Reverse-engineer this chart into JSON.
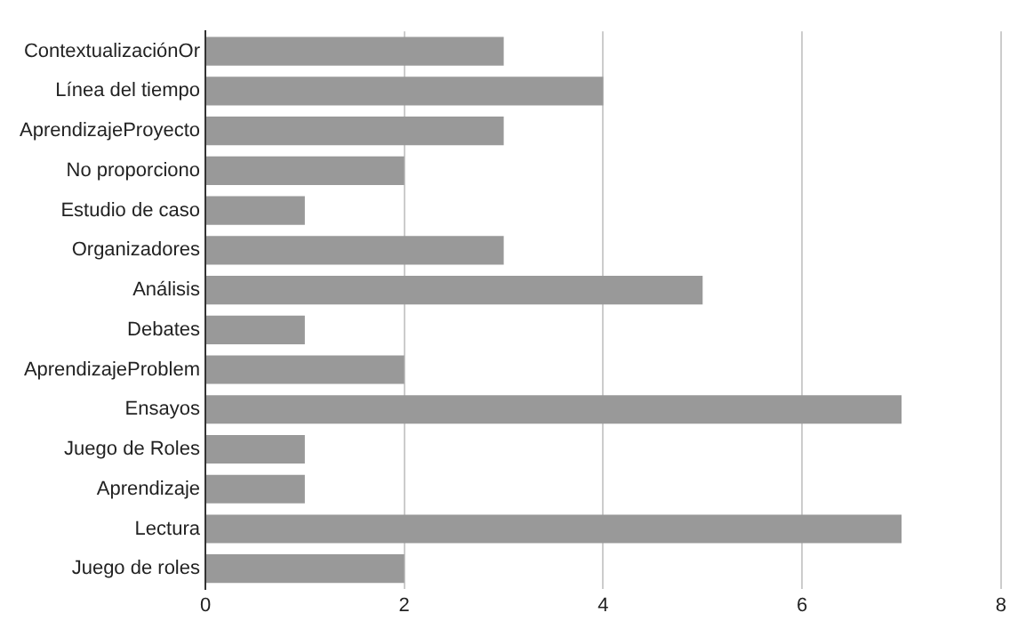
{
  "chart_data": {
    "type": "bar",
    "orientation": "horizontal",
    "categories": [
      "ContextualizaciónOr",
      "Línea del tiempo",
      "AprendizajeProyecto",
      "No proporciono",
      "Estudio de caso",
      "Organizadores",
      "Análisis",
      "Debates",
      "AprendizajeProblem",
      "Ensayos",
      "Juego de Roles",
      "Aprendizaje",
      "Lectura",
      "Juego de roles"
    ],
    "values": [
      3,
      4,
      3,
      2,
      1,
      3,
      5,
      1,
      2,
      7,
      1,
      1,
      7,
      2
    ],
    "color": "#999999",
    "xlim": [
      0,
      8
    ],
    "xticks": [
      0,
      2,
      4,
      6,
      8
    ],
    "grid": "x",
    "legend": false
  }
}
